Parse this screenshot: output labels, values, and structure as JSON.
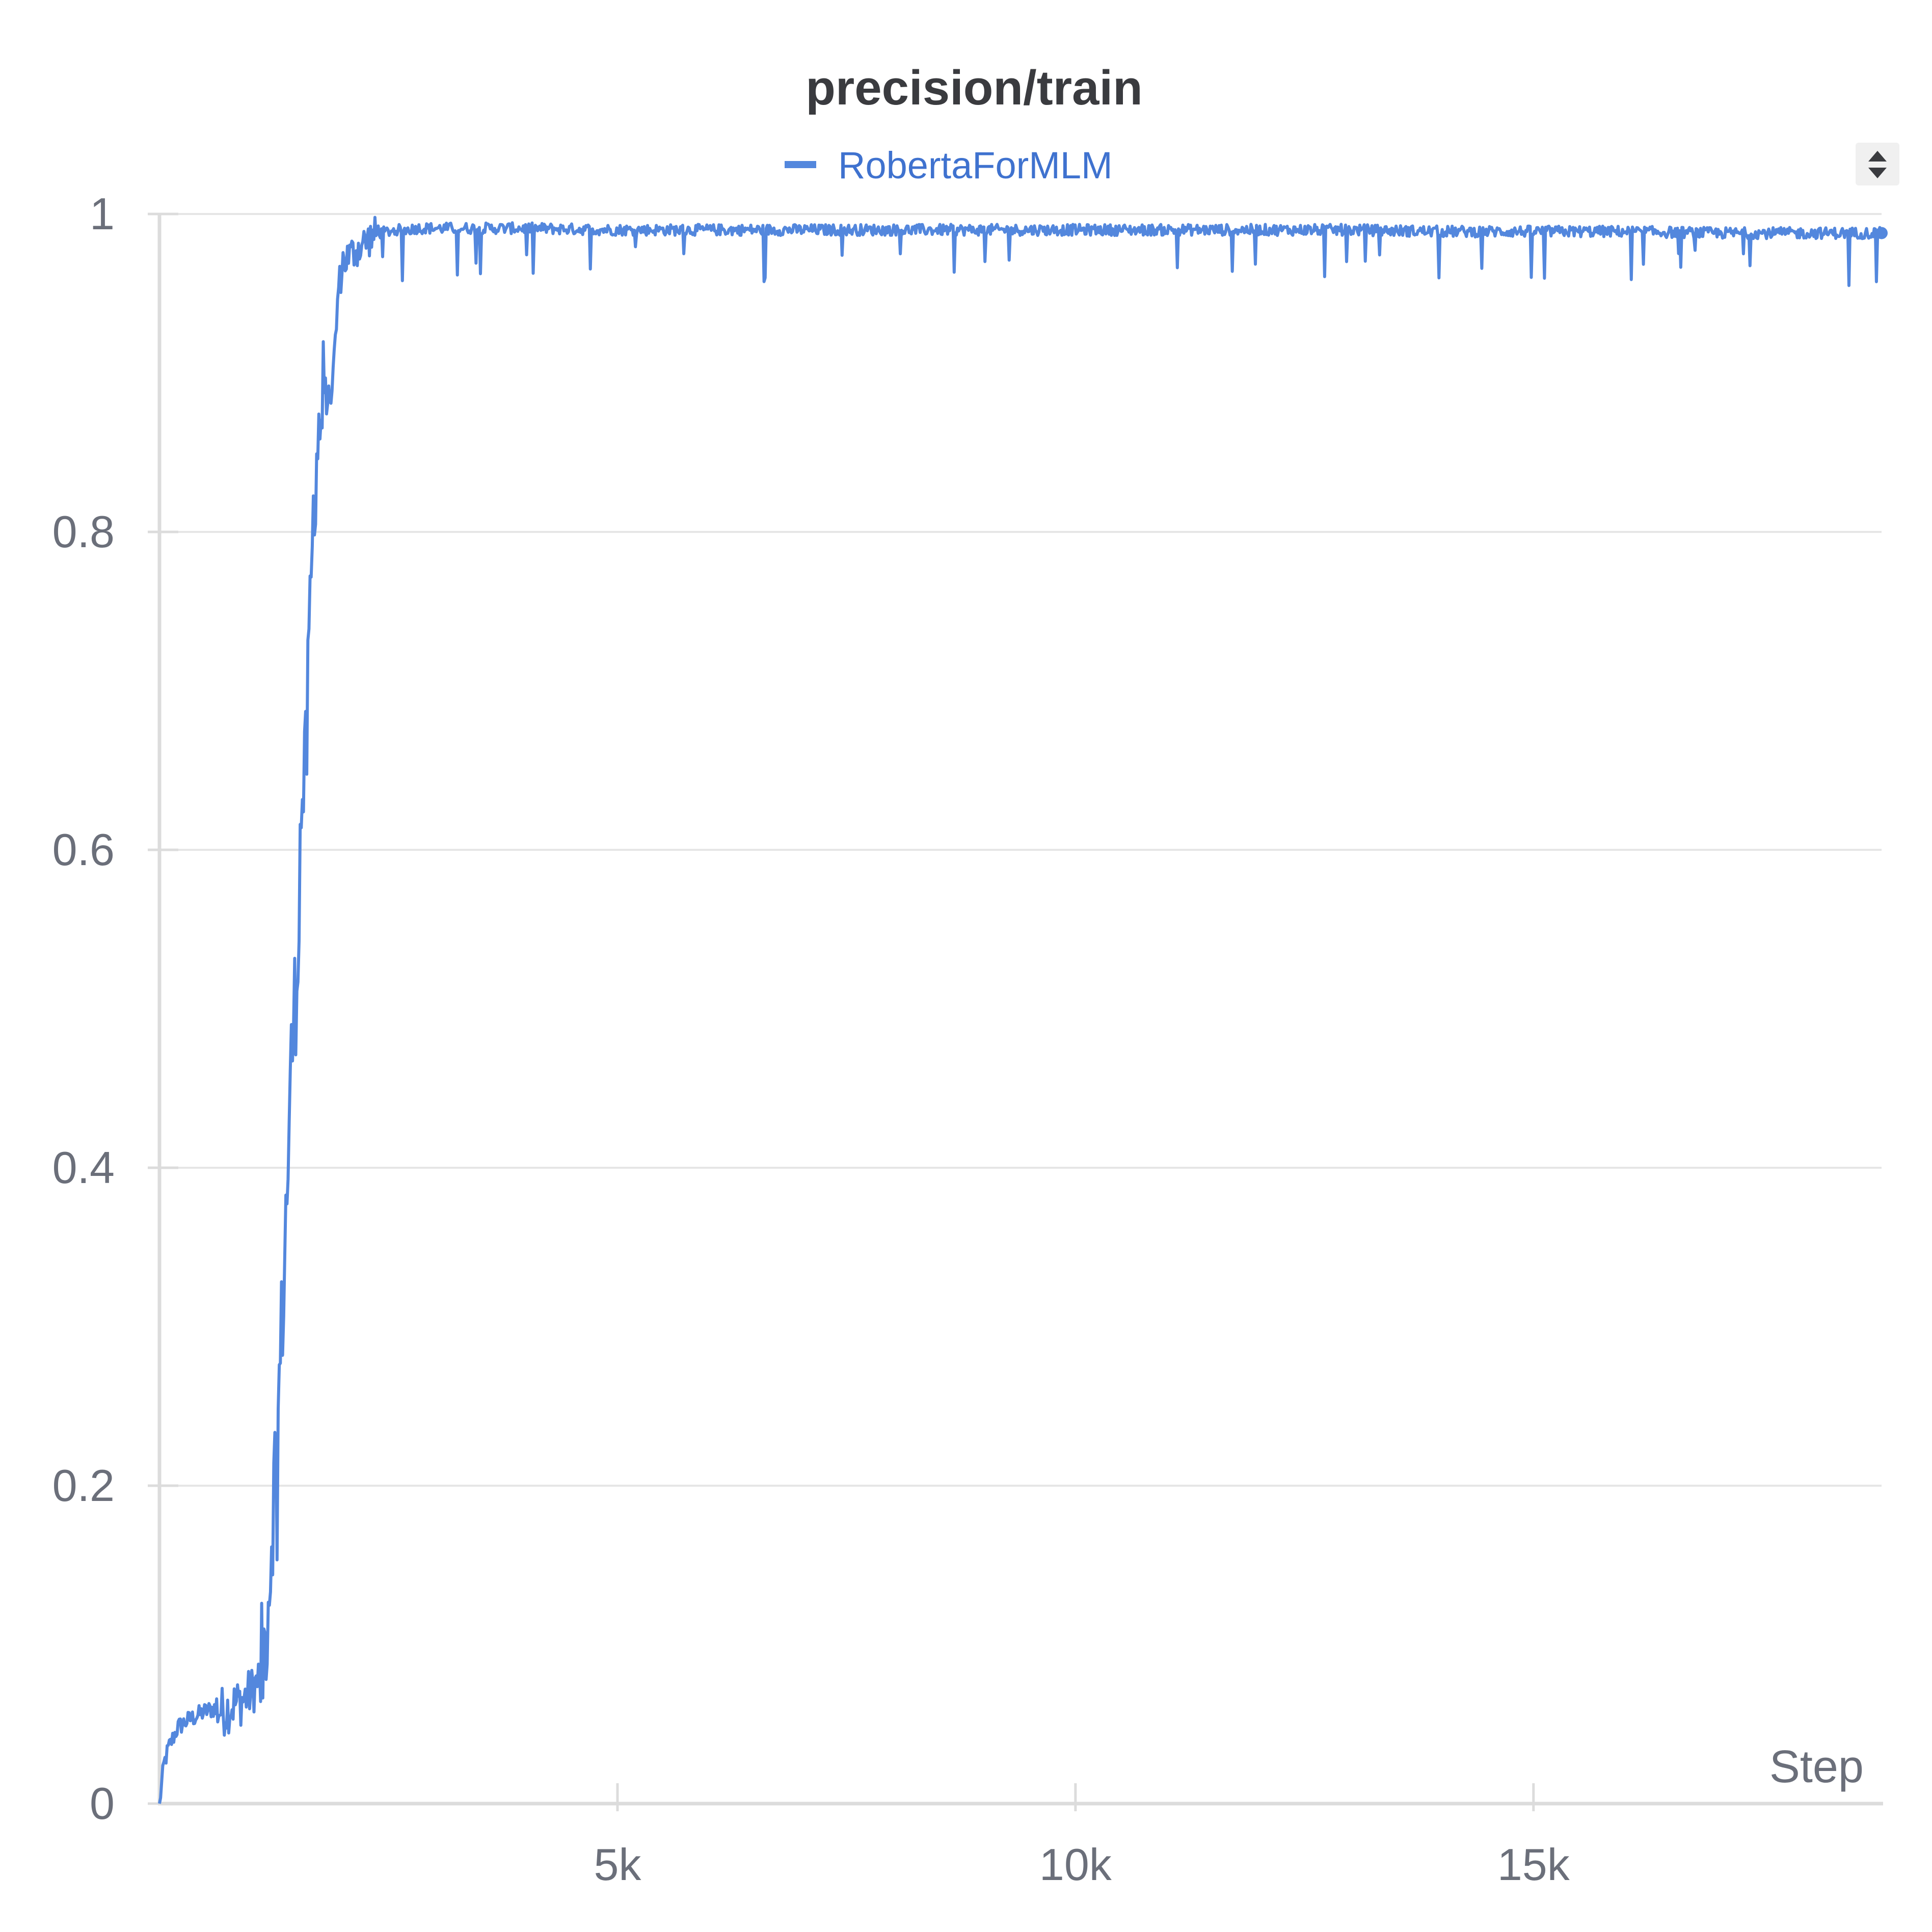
{
  "chart_data": {
    "type": "line",
    "title": "precision/train",
    "xlabel": "Step",
    "ylabel": "",
    "xlim": [
      0,
      18800
    ],
    "ylim": [
      0,
      1
    ],
    "x_ticks": [
      5000,
      10000,
      15000
    ],
    "x_tick_labels": [
      "5k",
      "10k",
      "15k"
    ],
    "y_ticks": [
      0,
      0.2,
      0.4,
      0.6,
      0.8,
      1
    ],
    "y_tick_labels": [
      "0",
      "0.2",
      "0.4",
      "0.6",
      "0.8",
      "1"
    ],
    "grid": true,
    "legend_position": "top",
    "colors": {
      "series": "#5387dd",
      "legend_text": "#3f72cf",
      "grid": "#e6e6e6",
      "axis": "#dcdcdc",
      "ticks": "#6b6f7a",
      "title": "#3a3b3f"
    },
    "series": [
      {
        "name": "RobertaForMLM",
        "x": [
          0,
          50,
          100,
          200,
          300,
          400,
          500,
          600,
          700,
          800,
          900,
          1000,
          1100,
          1150,
          1200,
          1250,
          1300,
          1350,
          1400,
          1450,
          1500,
          1550,
          1600,
          1650,
          1700,
          1750,
          1800,
          1850,
          1900,
          1950,
          2000,
          2100,
          2200,
          2300,
          2400,
          2500,
          2600,
          2700,
          2800,
          3000,
          3500,
          4000,
          5000,
          6000,
          7000,
          8000,
          9000,
          10000,
          11000,
          12000,
          13000,
          14000,
          15000,
          16000,
          17000,
          18000,
          18800
        ],
        "y": [
          0,
          0.025,
          0.035,
          0.048,
          0.052,
          0.055,
          0.058,
          0.06,
          0.058,
          0.062,
          0.065,
          0.07,
          0.08,
          0.1,
          0.14,
          0.2,
          0.25,
          0.32,
          0.4,
          0.48,
          0.52,
          0.63,
          0.65,
          0.76,
          0.84,
          0.87,
          0.89,
          0.88,
          0.9,
          0.95,
          0.97,
          0.975,
          0.98,
          0.985,
          0.988,
          0.989,
          0.99,
          0.99,
          0.991,
          0.991,
          0.991,
          0.991,
          0.99,
          0.99,
          0.99,
          0.99,
          0.99,
          0.99,
          0.99,
          0.99,
          0.99,
          0.989,
          0.989,
          0.989,
          0.988,
          0.988,
          0.988
        ]
      }
    ]
  },
  "controls": {
    "sort_icon": "sort-up-down-icon"
  }
}
